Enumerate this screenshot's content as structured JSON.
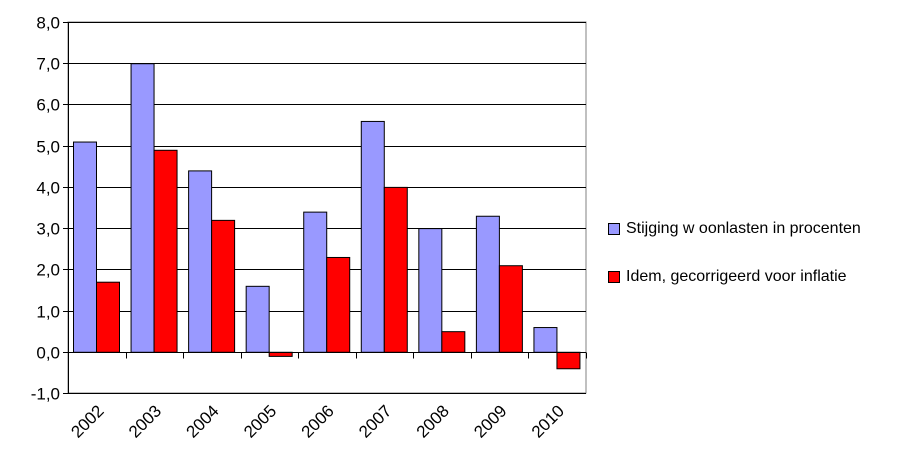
{
  "chart_data": {
    "type": "bar",
    "categories": [
      "2002",
      "2003",
      "2004",
      "2005",
      "2006",
      "2007",
      "2008",
      "2009",
      "2010"
    ],
    "series": [
      {
        "name": "Stijging w oonlasten in procenten",
        "color": "#9999ff",
        "values": [
          5.1,
          7.0,
          4.4,
          1.6,
          3.4,
          5.6,
          3.0,
          3.3,
          0.6
        ]
      },
      {
        "name": "Idem, gecorrigeerd voor inflatie",
        "color": "#ff0000",
        "values": [
          1.7,
          4.9,
          3.2,
          -0.1,
          2.3,
          4.0,
          0.5,
          2.1,
          -0.4
        ]
      }
    ],
    "y_ticks": [
      "-1,0",
      "0,0",
      "1,0",
      "2,0",
      "3,0",
      "4,0",
      "5,0",
      "6,0",
      "7,0",
      "8,0"
    ],
    "ylim": [
      -1,
      8
    ],
    "grid": true,
    "legend_position": "right"
  }
}
